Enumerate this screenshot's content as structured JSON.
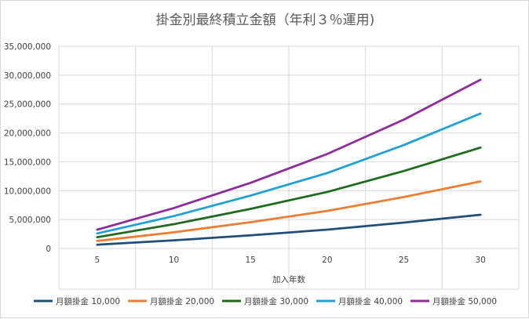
{
  "chart_data": {
    "type": "line",
    "title": "掛金別最終積立金額（年利３％運用)",
    "xlabel": "加入年数",
    "ylabel": "",
    "categories": [
      "5",
      "10",
      "15",
      "20",
      "25",
      "30"
    ],
    "x_tick_labels": [
      "5",
      "10",
      "15",
      "20",
      "25",
      "30"
    ],
    "ylim": [
      0,
      35000000
    ],
    "y_ticks": [
      0,
      5000000,
      10000000,
      15000000,
      20000000,
      25000000,
      30000000,
      35000000
    ],
    "y_tick_labels": [
      "0",
      "5,000,000",
      "10,000,000",
      "15,000,000",
      "20,000,000",
      "25,000,000",
      "30,000,000",
      "35,000,000"
    ],
    "grid": true,
    "legend_position": "bottom",
    "series": [
      {
        "name": "月額掛金 10,000",
        "color": "#1f4e79",
        "values": [
          650000,
          1400000,
          2280000,
          3250000,
          4480000,
          5830000
        ]
      },
      {
        "name": "月額掛金 20,000",
        "color": "#ed7d31",
        "values": [
          1300000,
          2800000,
          4550000,
          6500000,
          8900000,
          11600000
        ]
      },
      {
        "name": "月額掛金 30,000",
        "color": "#1e6b1e",
        "values": [
          1950000,
          4200000,
          6850000,
          9780000,
          13400000,
          17450000
        ]
      },
      {
        "name": "月額掛金 40,000",
        "color": "#1ea0d6",
        "values": [
          2600000,
          5600000,
          9150000,
          13050000,
          17900000,
          23350000
        ]
      },
      {
        "name": "月額掛金 50,000",
        "color": "#8e2b9a",
        "values": [
          3250000,
          7000000,
          11350000,
          16350000,
          22300000,
          29200000
        ]
      }
    ]
  }
}
